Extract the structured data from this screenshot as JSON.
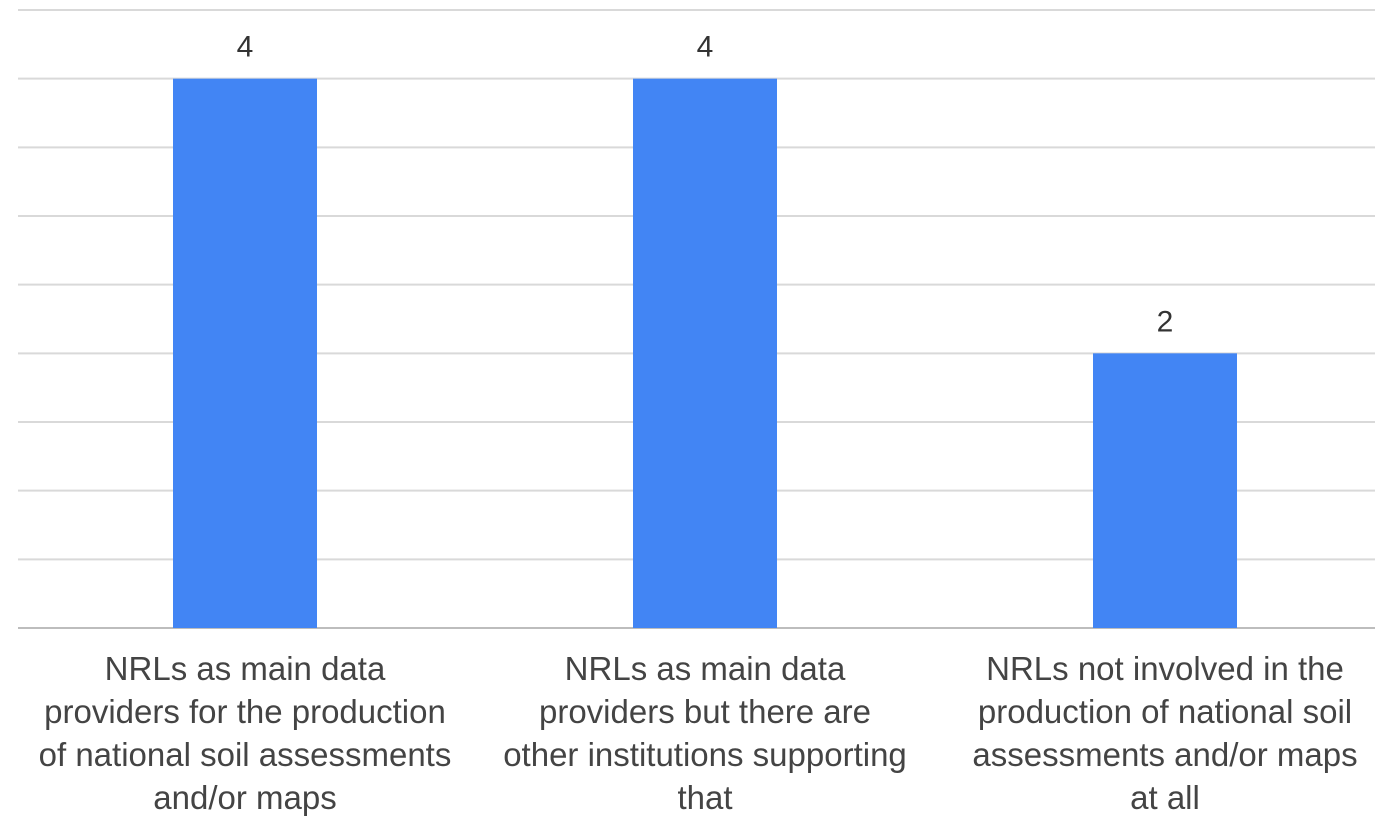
{
  "chart_data": {
    "type": "bar",
    "categories": [
      [
        "NRLs as main data",
        "providers for the production",
        "of national soil assessments",
        "and/or maps"
      ],
      [
        "NRLs as main data",
        "providers but there are",
        "other institutions supporting",
        "that"
      ],
      [
        "NRLs not involved in the",
        "production of national soil",
        "assessments and/or maps",
        "at all"
      ]
    ],
    "values": [
      4,
      4,
      2
    ],
    "data_labels": [
      "4",
      "4",
      "2"
    ],
    "ylim": [
      0,
      4.5
    ],
    "grid": true,
    "colors": {
      "bar": "#4285f4",
      "grid": "#d9d9d9"
    }
  }
}
